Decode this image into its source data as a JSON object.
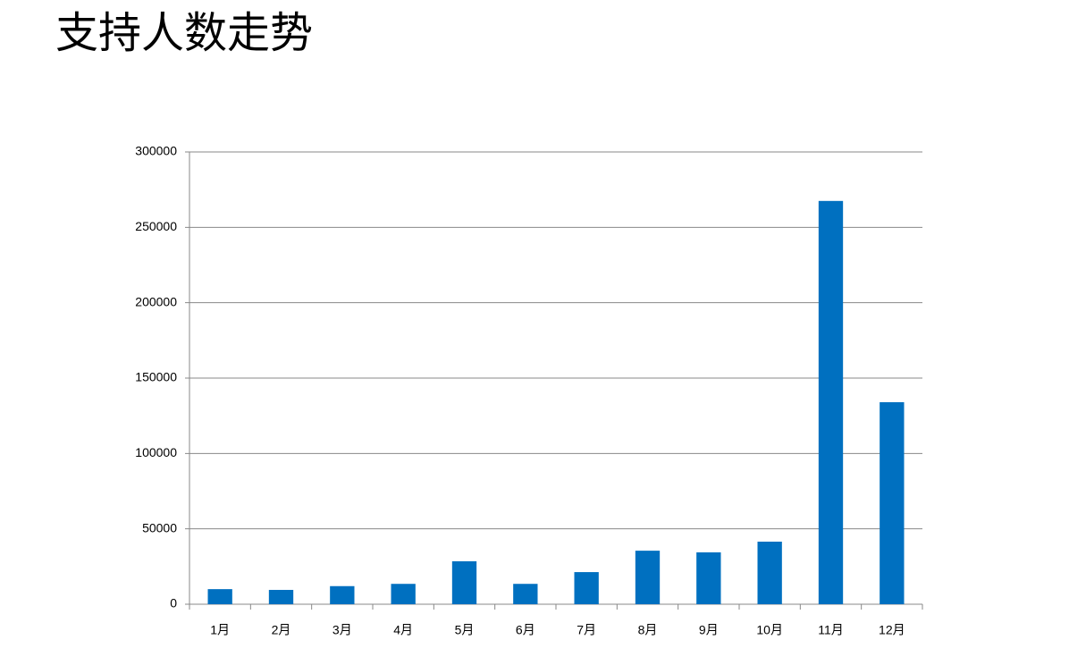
{
  "chart_data": {
    "type": "bar",
    "title": "支持人数走势",
    "categories": [
      "1月",
      "2月",
      "3月",
      "4月",
      "5月",
      "6月",
      "7月",
      "8月",
      "9月",
      "10月",
      "11月",
      "12月"
    ],
    "values": [
      10000,
      9500,
      12000,
      13500,
      28500,
      13500,
      21300,
      35500,
      34400,
      41500,
      267500,
      134000
    ],
    "color": "#0070c0",
    "ylim": [
      0,
      300000
    ],
    "yticks": [
      0,
      50000,
      100000,
      150000,
      200000,
      250000,
      300000
    ],
    "grid": true
  }
}
